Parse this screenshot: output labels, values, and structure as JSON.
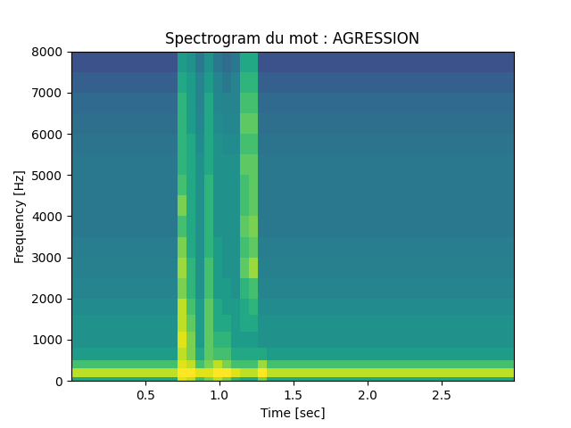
{
  "chart_data": {
    "type": "heatmap",
    "title": "Spectrogram du mot : AGRESSION",
    "x_label": "Time [sec]",
    "y_label": "Frequency [Hz]",
    "xlim": [
      0.0,
      2.99
    ],
    "ylim": [
      0,
      8000
    ],
    "xticks": [
      0.5,
      1.0,
      1.5,
      2.0,
      2.5
    ],
    "yticks": [
      0,
      1000,
      2000,
      3000,
      4000,
      5000,
      6000,
      7000,
      8000
    ],
    "x_edges": [
      0.0,
      0.3,
      0.6,
      0.72,
      0.78,
      0.84,
      0.9,
      0.96,
      1.02,
      1.08,
      1.14,
      1.2,
      1.26,
      1.32,
      1.5,
      1.8,
      2.1,
      2.4,
      2.7,
      3.0
    ],
    "y_edges": [
      0,
      100,
      300,
      500,
      800,
      1200,
      1600,
      2000,
      2500,
      3000,
      3500,
      4000,
      4500,
      5000,
      5500,
      6000,
      6500,
      7000,
      7500,
      8000
    ],
    "clim": [
      0,
      10
    ],
    "cells": [
      [
        6,
        6,
        6,
        9.5,
        9,
        7,
        8,
        9,
        8,
        6.5,
        6,
        6,
        8,
        6,
        6,
        6,
        6,
        6,
        6
      ],
      [
        9,
        9,
        9,
        10,
        10,
        9.5,
        9.5,
        10,
        10,
        9.5,
        9,
        9,
        10,
        9,
        9,
        9,
        9,
        9,
        9
      ],
      [
        7,
        7,
        7,
        9.5,
        9,
        7,
        8,
        9,
        8,
        7,
        7,
        7,
        8.5,
        7,
        7,
        7,
        7,
        7,
        7
      ],
      [
        5.5,
        5.5,
        5.5,
        9,
        8,
        6,
        7.5,
        7,
        7,
        6,
        6,
        6,
        6,
        5.5,
        5.5,
        5.5,
        5.5,
        5.5,
        5.5
      ],
      [
        5,
        5,
        5,
        9.5,
        8,
        5.5,
        7.5,
        6.5,
        6.5,
        5.5,
        5.5,
        5.5,
        5,
        5,
        5,
        5,
        5,
        5,
        5
      ],
      [
        5,
        5,
        5,
        9,
        7.5,
        5.5,
        7.5,
        6,
        6,
        5.5,
        6,
        6,
        5,
        5,
        5,
        5,
        5,
        5,
        5
      ],
      [
        4.8,
        4.8,
        4.8,
        9,
        7,
        5.5,
        7.5,
        6,
        5.5,
        5.5,
        6,
        6.5,
        4.8,
        4.8,
        4.8,
        4.8,
        4.8,
        4.8,
        4.8
      ],
      [
        4.5,
        4.5,
        4.5,
        8,
        6.5,
        5,
        7,
        5.5,
        5.5,
        5,
        6.5,
        7,
        4.5,
        4.5,
        4.5,
        4.5,
        4.5,
        4.5,
        4.5
      ],
      [
        4.3,
        4.3,
        4.3,
        8.5,
        6.5,
        5,
        7,
        5.5,
        5,
        5,
        7.5,
        8.5,
        4.3,
        4.3,
        4.3,
        4.3,
        4.3,
        4.3,
        4.3
      ],
      [
        4.2,
        4.2,
        4.2,
        8,
        6,
        5,
        6.5,
        5.5,
        5,
        5,
        7,
        7.5,
        4.2,
        4.2,
        4.2,
        4.2,
        4.2,
        4.2,
        4.2
      ],
      [
        4,
        4,
        4,
        7,
        6,
        5,
        6.5,
        5,
        5,
        5,
        7.5,
        8,
        4,
        4,
        4,
        4,
        4,
        4,
        4
      ],
      [
        4,
        4,
        4,
        8,
        6,
        5,
        6.5,
        5,
        5,
        5,
        7,
        7.5,
        4,
        4,
        4,
        4,
        4,
        4,
        4
      ],
      [
        4,
        4,
        4,
        7,
        6,
        5,
        6.5,
        5,
        5,
        5,
        7,
        7.5,
        4,
        4,
        4,
        4,
        4,
        4,
        4
      ],
      [
        4,
        4,
        4,
        6.5,
        6,
        5,
        6,
        5,
        5,
        5,
        7.5,
        7.5,
        4,
        4,
        4,
        4,
        4,
        4,
        4
      ],
      [
        3.8,
        3.8,
        3.8,
        6.5,
        6,
        4.8,
        6,
        5,
        4.8,
        4.8,
        7,
        7,
        3.8,
        3.8,
        3.8,
        3.8,
        3.8,
        3.8,
        3.8
      ],
      [
        3.6,
        3.6,
        3.6,
        6.5,
        5.5,
        4.6,
        6,
        4.8,
        4.6,
        4.6,
        7.5,
        7.5,
        3.6,
        3.6,
        3.6,
        3.6,
        3.6,
        3.6,
        3.6
      ],
      [
        3.4,
        3.4,
        3.4,
        6.5,
        5.5,
        4.5,
        6,
        4.6,
        4.5,
        4.5,
        7,
        7,
        3.4,
        3.4,
        3.4,
        3.4,
        3.4,
        3.4,
        3.4
      ],
      [
        3,
        3,
        3,
        6,
        5.5,
        4.5,
        5.5,
        4.5,
        4,
        4.5,
        6.5,
        6.5,
        3,
        3,
        3,
        3,
        3,
        3,
        3
      ],
      [
        2.5,
        2.5,
        2.5,
        5.5,
        5,
        4,
        5,
        4,
        3.5,
        4,
        6,
        6,
        2.5,
        2.5,
        2.5,
        2.5,
        2.5,
        2.5,
        2.5
      ]
    ]
  }
}
